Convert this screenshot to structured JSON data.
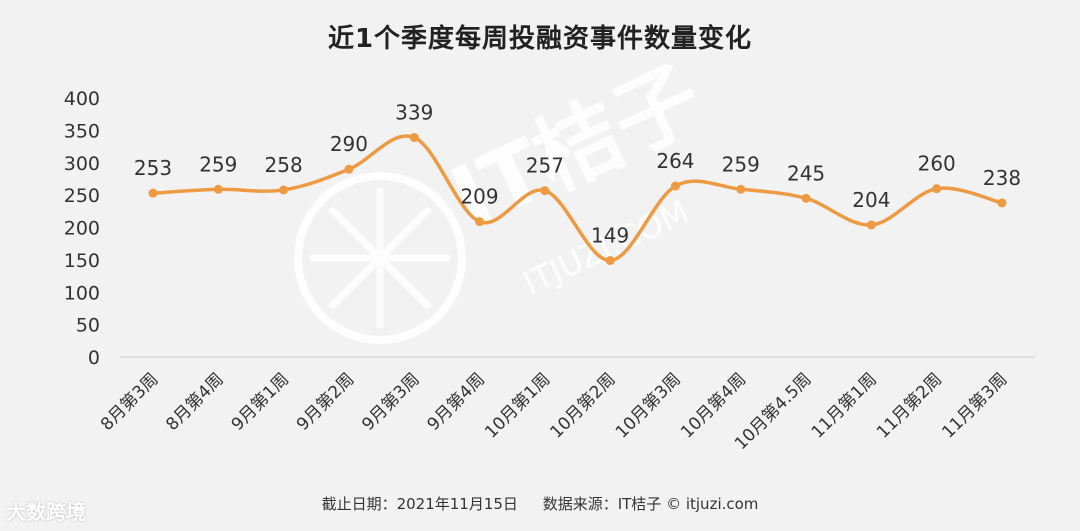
{
  "page": {
    "title": "近1个季度每周投融资事件数量变化",
    "footer": {
      "date": "截止日期：2021年11月15日",
      "source": "数据来源：IT桔子 © itjuzi.com"
    },
    "watermark": {
      "brand": "IT桔子",
      "url": "ITJUZI.COM"
    },
    "corner_logo": "大数跨境"
  },
  "chart_data": {
    "type": "line",
    "title": "近1个季度每周投融资事件数量变化",
    "categories": [
      "8月第3周",
      "8月第4周",
      "9月第1周",
      "9月第2周",
      "9月第3周",
      "9月第4周",
      "10月第1周",
      "10月第2周",
      "10月第3周",
      "10月第4周",
      "10月第4.5周",
      "11月第1周",
      "11月第2周",
      "11月第3周"
    ],
    "series": [
      {
        "values": [
          253,
          259,
          258,
          290,
          339,
          209,
          257,
          149,
          264,
          259,
          245,
          204,
          260,
          238
        ]
      }
    ],
    "ylim": [
      0,
      400
    ],
    "yticks": [
      0,
      50,
      100,
      150,
      200,
      250,
      300,
      350,
      400
    ],
    "grid": false,
    "smooth": true,
    "line_color": "#ED9A43",
    "data_labels": true
  }
}
